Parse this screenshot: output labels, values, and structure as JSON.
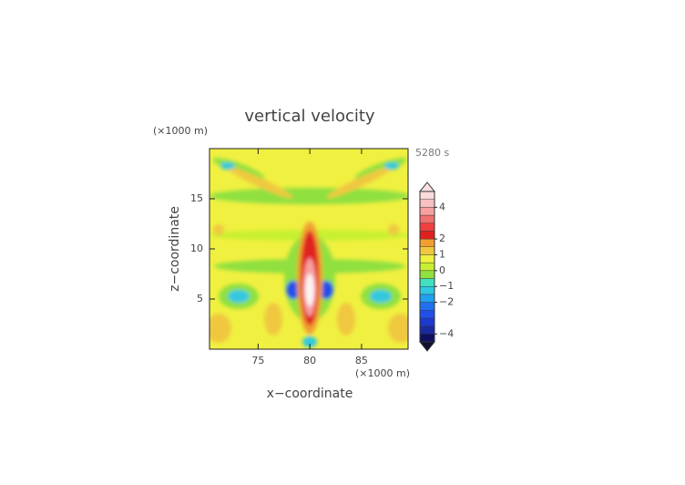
{
  "chart_data": {
    "type": "contour",
    "title": "vertical velocity",
    "x_unit": "(×1000 m)",
    "y_unit": "(×1000 m)",
    "time_label": "5280 s",
    "xlabel": "x−coordinate",
    "ylabel": "z−coordinate",
    "xlim": [
      70.3,
      89.5
    ],
    "xticks": [
      75,
      80,
      85
    ],
    "ylim": [
      0,
      20
    ],
    "yticks": [
      5,
      10,
      15
    ],
    "colorbar": {
      "levels": [
        -4.5,
        -4,
        -3.5,
        -3,
        -2.5,
        -2,
        -1.5,
        -1,
        -0.5,
        0,
        0.5,
        1,
        1.5,
        2,
        2.5,
        3,
        3.5,
        4,
        4.5,
        5
      ],
      "colors": [
        "#101060",
        "#1a2aa0",
        "#1c3ad0",
        "#2050e8",
        "#2070f0",
        "#20a0f0",
        "#30c8e0",
        "#40e0c0",
        "#90e040",
        "#c8f030",
        "#f0f040",
        "#f0c840",
        "#f0a030",
        "#e02020",
        "#f04040",
        "#f07070",
        "#f8a0a0",
        "#f8c0c0",
        "#fadcdc"
      ],
      "extend_colors": [
        "#101030",
        "#fbe0e0"
      ],
      "ticks": [
        {
          "value": 4,
          "label": "4"
        },
        {
          "value": 2,
          "label": "2"
        },
        {
          "value": 1,
          "label": "1"
        },
        {
          "value": 0,
          "label": "0"
        },
        {
          "value": -1,
          "label": "−1"
        },
        {
          "value": -2,
          "label": "−2"
        },
        {
          "value": -4,
          "label": "−4"
        }
      ]
    }
  }
}
